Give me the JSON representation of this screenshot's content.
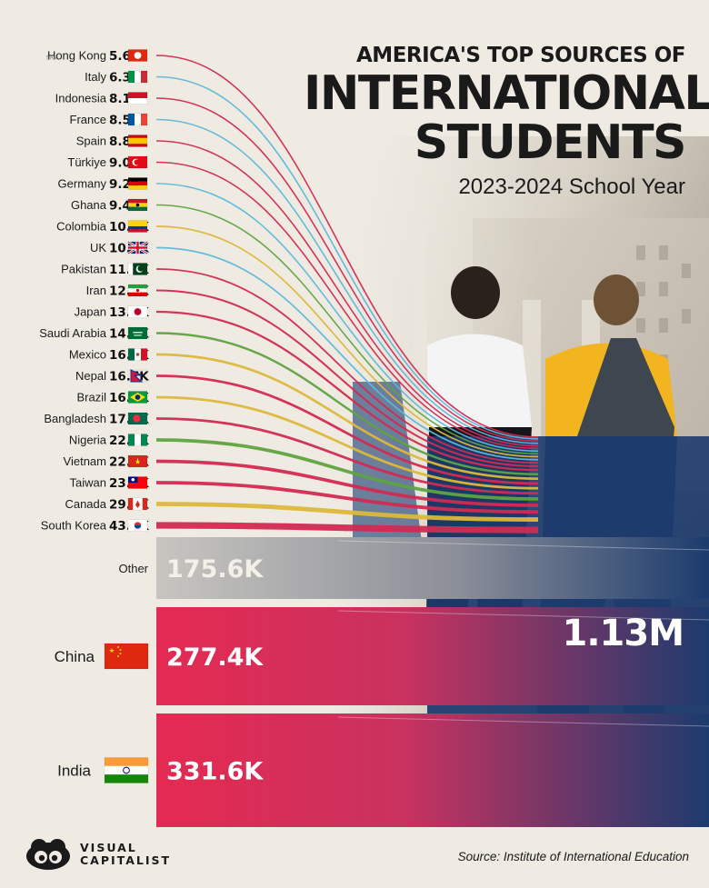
{
  "title": {
    "line1": "AMERICA'S TOP SOURCES OF",
    "line2": "INTERNATIONAL",
    "line3": "STUDENTS",
    "subtitle": "2023-2024 School Year"
  },
  "colors": {
    "red": "#d22a52",
    "blue": "#5db8d8",
    "green": "#5fa341",
    "yellow": "#dcb83b",
    "gray": "#c8c6c1",
    "crimson": "#e0284f",
    "navy": "#1d3b6e",
    "background": "#efebe3"
  },
  "chart_data": {
    "type": "bar",
    "unit": "students",
    "categories": [
      "Hong Kong",
      "Italy",
      "Indonesia",
      "France",
      "Spain",
      "Türkiye",
      "Germany",
      "Ghana",
      "Colombia",
      "UK",
      "Pakistan",
      "Iran",
      "Japan",
      "Saudi Arabia",
      "Mexico",
      "Nepal",
      "Brazil",
      "Bangladesh",
      "Nigeria",
      "Vietnam",
      "Taiwan",
      "Canada",
      "South Korea",
      "Other",
      "China",
      "India"
    ],
    "values": [
      5.6,
      6.3,
      8.1,
      8.5,
      8.8,
      9.0,
      9.2,
      9.4,
      10.4,
      10.5,
      11.1,
      12.5,
      13.6,
      14.8,
      16.0,
      16.7,
      16.9,
      17.1,
      22.0,
      22.1,
      23.1,
      29.0,
      43.1,
      175.6,
      277.4,
      331.6
    ],
    "value_labels": [
      "5.6K",
      "6.3K",
      "8.1K",
      "8.5K",
      "8.8K",
      "9.0K",
      "9.2K",
      "9.4K",
      "10.4K",
      "10.5K",
      "11.1K",
      "12.5K",
      "13.6K",
      "14.8K",
      "16.0K",
      "16.7K",
      "16.9K",
      "17.1K",
      "22.0K",
      "22.1K",
      "23.1K",
      "29.0K",
      "43.1K",
      "175.6K",
      "277.4K",
      "331.6K"
    ],
    "line_colors": [
      "red",
      "blue",
      "red",
      "blue",
      "red",
      "red",
      "blue",
      "green",
      "yellow",
      "blue",
      "red",
      "red",
      "red",
      "green",
      "yellow",
      "red",
      "yellow",
      "red",
      "green",
      "red",
      "red",
      "yellow",
      "red",
      "gray",
      "crimson",
      "crimson"
    ],
    "flags": [
      "flag-hongkong",
      "flag-italy",
      "flag-indonesia",
      "flag-france",
      "flag-spain",
      "flag-turkiye",
      "flag-germany",
      "flag-ghana",
      "flag-colombia",
      "flag-uk",
      "flag-pakistan",
      "flag-iran",
      "flag-japan",
      "flag-saudi",
      "flag-mexico",
      "flag-nepal",
      "flag-brazil",
      "flag-bangladesh",
      "flag-nigeria",
      "flag-vietnam",
      "flag-taiwan",
      "flag-canada",
      "flag-southkorea",
      "",
      "flag-china",
      "flag-india"
    ],
    "hongkong_prefix": "SAR",
    "total": 1130,
    "total_label": "1.13M"
  },
  "footer": {
    "logo_line1": "VISUAL",
    "logo_line2": "CAPITALIST",
    "logo_icon": "visual-capitalist-logo-icon",
    "source": "Source: Institute of International Education"
  }
}
